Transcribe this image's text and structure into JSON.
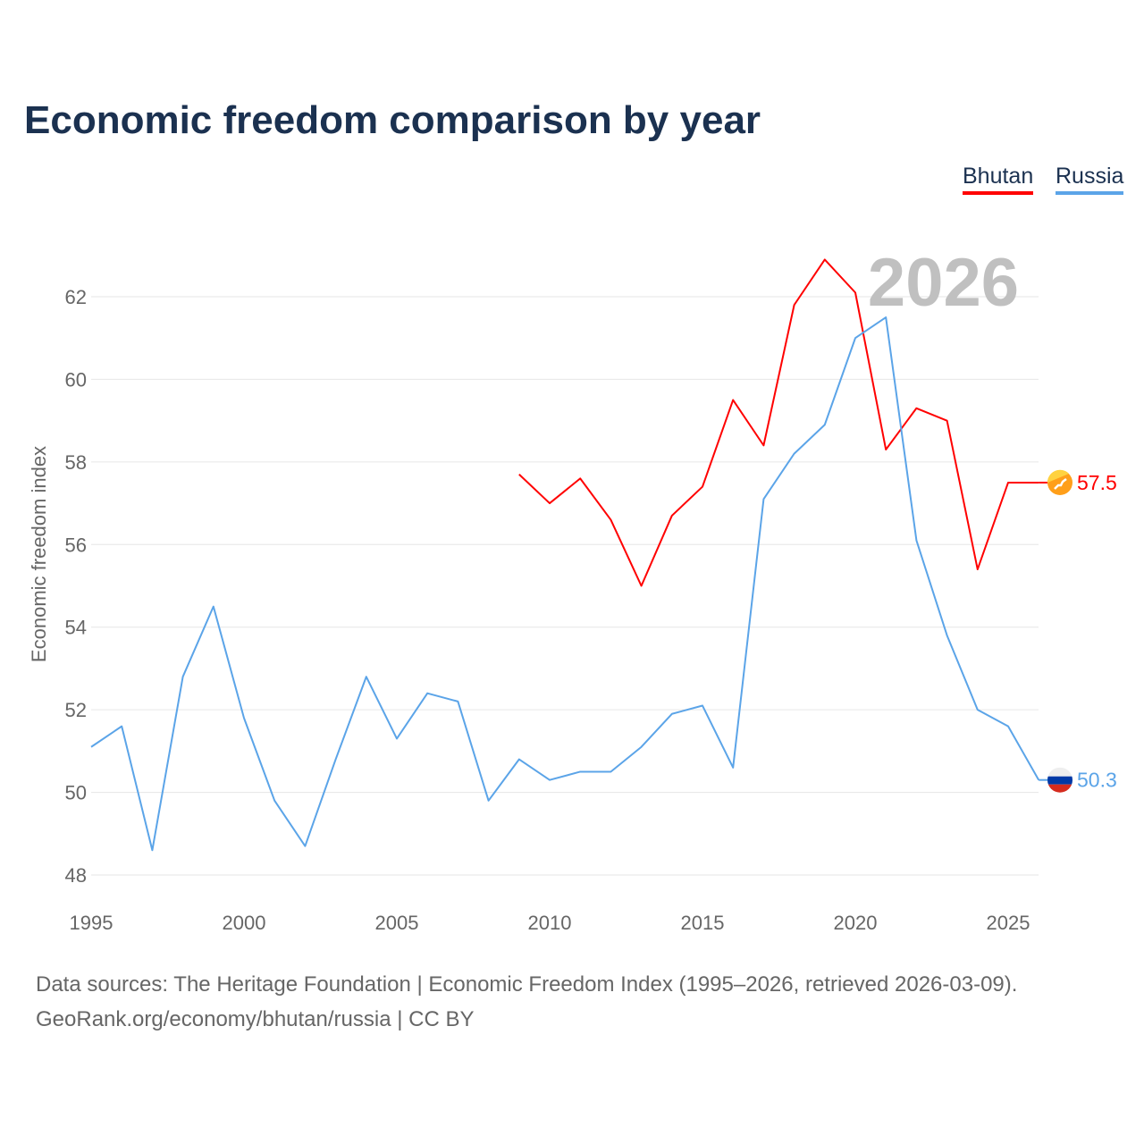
{
  "chart_data": {
    "type": "line",
    "title": "Economic freedom comparison by year",
    "xlabel": "",
    "ylabel": "Economic freedom index",
    "xlim": [
      1995,
      2026
    ],
    "ylim": [
      47.4,
      63.4
    ],
    "yticks": [
      48,
      50,
      52,
      54,
      56,
      58,
      60,
      62
    ],
    "xticks": [
      1995,
      2000,
      2005,
      2010,
      2015,
      2020,
      2025
    ],
    "grid": true,
    "legend_placement": "top-right",
    "watermark_year": "2026",
    "series": [
      {
        "name": "Bhutan",
        "color": "#ff0000",
        "end_label": "57.5",
        "icon": "bhutan-flag-icon",
        "x": [
          2009,
          2010,
          2011,
          2012,
          2013,
          2014,
          2015,
          2016,
          2017,
          2018,
          2019,
          2020,
          2021,
          2022,
          2023,
          2024,
          2025,
          2026
        ],
        "values": [
          57.7,
          57.0,
          57.6,
          56.6,
          55.0,
          56.7,
          57.4,
          59.5,
          58.4,
          61.8,
          62.9,
          62.1,
          58.3,
          59.3,
          59.0,
          55.4,
          57.5,
          57.5
        ]
      },
      {
        "name": "Russia",
        "color": "#5ba4e8",
        "end_label": "50.3",
        "icon": "russia-flag-icon",
        "x": [
          1995,
          1996,
          1997,
          1998,
          1999,
          2000,
          2001,
          2002,
          2003,
          2004,
          2005,
          2006,
          2007,
          2008,
          2009,
          2010,
          2011,
          2012,
          2013,
          2014,
          2015,
          2016,
          2017,
          2018,
          2019,
          2020,
          2021,
          2022,
          2023,
          2024,
          2025,
          2026
        ],
        "values": [
          51.1,
          51.6,
          48.6,
          52.8,
          54.5,
          51.8,
          49.8,
          48.7,
          50.8,
          52.8,
          51.3,
          52.4,
          52.2,
          49.8,
          50.8,
          50.3,
          50.5,
          50.5,
          51.1,
          51.9,
          52.1,
          50.6,
          57.1,
          58.2,
          58.9,
          61.0,
          61.5,
          56.1,
          53.8,
          52.0,
          51.6,
          50.3
        ]
      }
    ]
  },
  "footer": {
    "sources": "Data sources: The Heritage Foundation | Economic Freedom Index (1995–2026, retrieved 2026-03-09).",
    "credit": "GeoRank.org/economy/bhutan/russia | CC BY"
  }
}
